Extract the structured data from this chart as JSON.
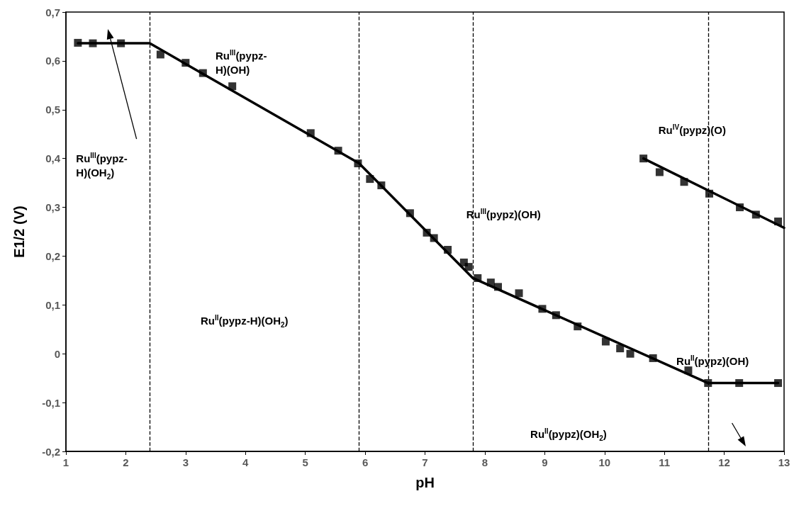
{
  "chart_data": {
    "type": "scatter",
    "xlabel": "pH",
    "ylabel": "E1/2 (V)",
    "xlim": [
      1,
      13
    ],
    "ylim": [
      -0.2,
      0.7
    ],
    "xticks": [
      1,
      2,
      3,
      4,
      5,
      6,
      7,
      8,
      9,
      10,
      11,
      12,
      13
    ],
    "yticks": [
      {
        "value": -0.2,
        "label": "-0,2"
      },
      {
        "value": -0.1,
        "label": "-0,1"
      },
      {
        "value": 0,
        "label": "0"
      },
      {
        "value": 0.1,
        "label": "0,1"
      },
      {
        "value": 0.2,
        "label": "0,2"
      },
      {
        "value": 0.3,
        "label": "0,3"
      },
      {
        "value": 0.4,
        "label": "0,4"
      },
      {
        "value": 0.5,
        "label": "0,5"
      },
      {
        "value": 0.6,
        "label": "0,6"
      },
      {
        "value": 0.7,
        "label": "0,7"
      }
    ],
    "grid": false,
    "marker": "square",
    "series": [
      {
        "color": "#000000",
        "x": [
          1.2,
          1.45,
          1.92,
          2.58,
          3.0,
          3.29,
          3.78,
          5.09,
          5.55,
          5.88,
          6.08,
          6.27,
          6.75,
          7.03,
          7.15,
          7.38,
          7.65,
          7.73,
          7.88,
          8.1,
          8.22,
          8.57,
          8.96,
          9.19,
          9.55,
          10.02,
          10.26,
          10.43,
          10.81,
          11.4,
          11.73,
          12.25,
          12.9
        ],
        "values": [
          0.637,
          0.636,
          0.636,
          0.613,
          0.596,
          0.575,
          0.548,
          0.452,
          0.416,
          0.39,
          0.358,
          0.345,
          0.288,
          0.248,
          0.237,
          0.213,
          0.187,
          0.178,
          0.155,
          0.146,
          0.137,
          0.124,
          0.092,
          0.079,
          0.056,
          0.025,
          0.011,
          0.0,
          -0.009,
          -0.034,
          -0.06,
          -0.06,
          -0.06
        ]
      },
      {
        "color": "#000000",
        "x": [
          10.65,
          10.92,
          11.33,
          11.75,
          12.26,
          12.53,
          12.9
        ],
        "values": [
          0.4,
          0.372,
          0.352,
          0.328,
          0.3,
          0.285,
          0.271
        ]
      },
      {
        "type": "line",
        "color": "#000000",
        "marker": "none",
        "line_style": "solid",
        "x": [
          1.2,
          2.4,
          5.9,
          7.8,
          11.73,
          12.9
        ],
        "values": [
          0.636,
          0.636,
          0.39,
          0.155,
          -0.06,
          -0.06
        ]
      },
      {
        "type": "line",
        "color": "#000000",
        "marker": "none",
        "line_style": "solid",
        "x": [
          10.65,
          13
        ],
        "values": [
          0.4,
          0.258
        ]
      }
    ],
    "ref_lines": [
      {
        "axis": "x",
        "value": 2.4,
        "color": "#000000",
        "line_style": "dashed"
      },
      {
        "axis": "x",
        "value": 5.9,
        "color": "#000000",
        "line_style": "dashed"
      },
      {
        "axis": "x",
        "value": 7.8,
        "color": "#000000",
        "line_style": "dashed"
      },
      {
        "axis": "x",
        "value": 11.73,
        "color": "#000000",
        "line_style": "dashed"
      }
    ],
    "annotations": [
      "Ru$^{III}$(pypz-H)(OH)",
      "Ru$^{III}$(pypz-H)(OH$_{2}$)",
      "Ru$^{II}$(pypz-H)(OH$_{2}$)",
      "Ru$^{III}$(pypz)(OH)",
      "Ru$^{IV}$(pypz)(O)",
      "Ru$^{II}$(pypz)(OH)",
      "Ru$^{II}$(pypz)(OH$_{2}$)"
    ]
  }
}
